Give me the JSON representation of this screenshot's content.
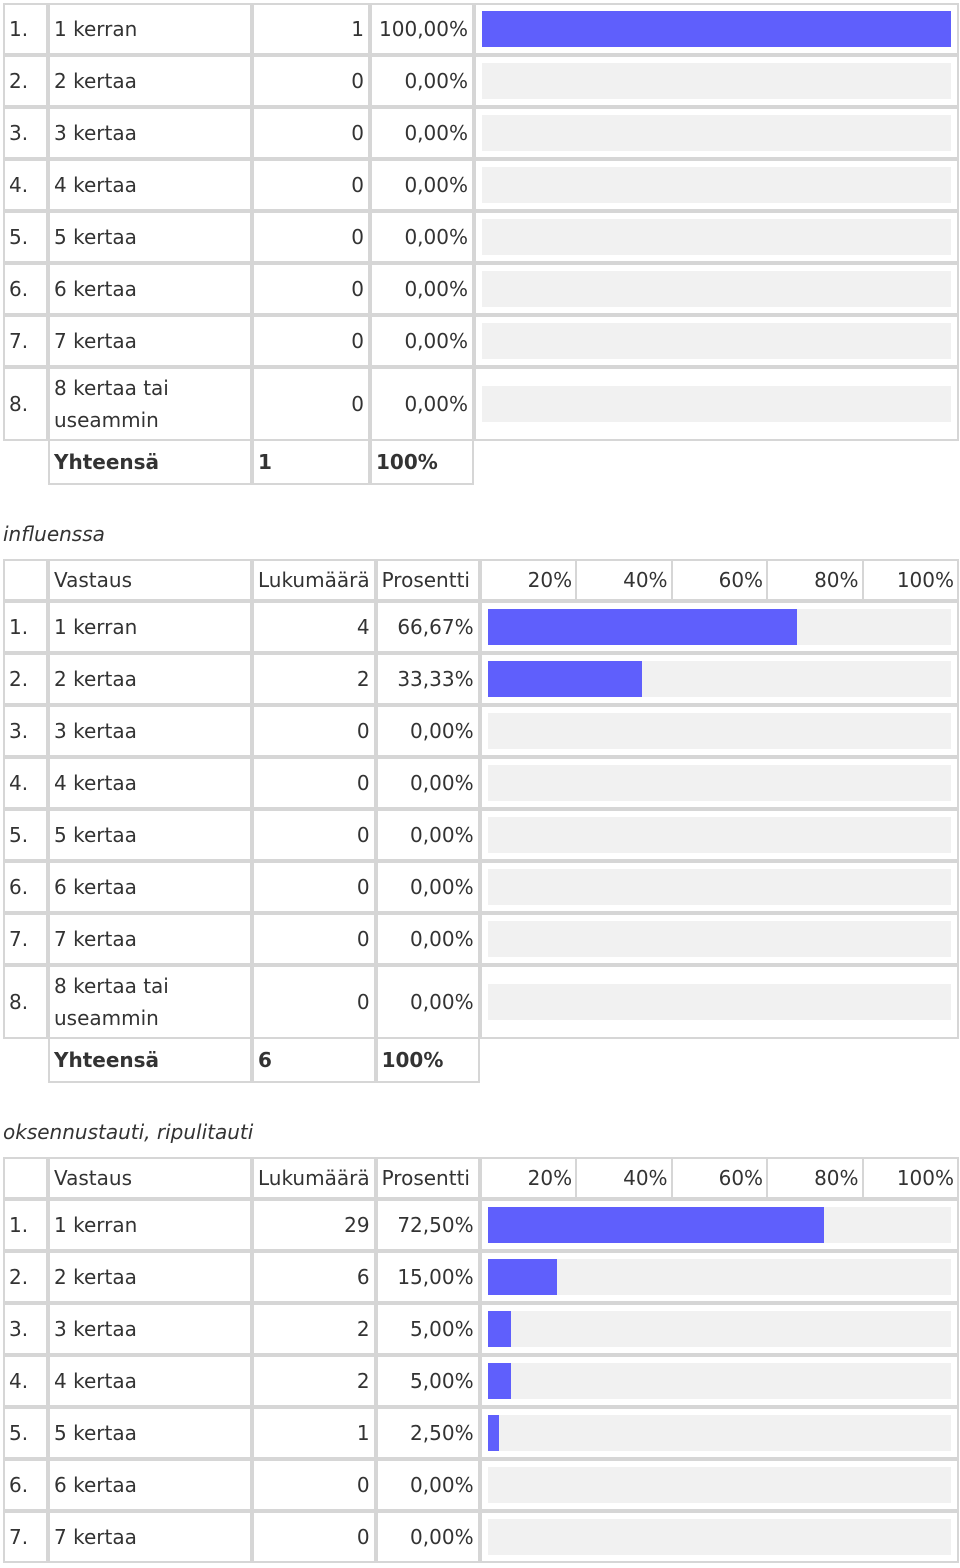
{
  "columns": {
    "answer": "Vastaus",
    "count": "Lukumäärä",
    "percent": "Prosentti",
    "scale": [
      "20%",
      "40%",
      "60%",
      "80%",
      "100%"
    ]
  },
  "sections": [
    {
      "title": "",
      "rows": [
        {
          "num": "1.",
          "label": "1 kerran",
          "count": "1",
          "pct": "100,00%",
          "value": 100.0
        },
        {
          "num": "2.",
          "label": "2 kertaa",
          "count": "0",
          "pct": "0,00%",
          "value": 0
        },
        {
          "num": "3.",
          "label": "3 kertaa",
          "count": "0",
          "pct": "0,00%",
          "value": 0
        },
        {
          "num": "4.",
          "label": "4 kertaa",
          "count": "0",
          "pct": "0,00%",
          "value": 0
        },
        {
          "num": "5.",
          "label": "5 kertaa",
          "count": "0",
          "pct": "0,00%",
          "value": 0
        },
        {
          "num": "6.",
          "label": "6 kertaa",
          "count": "0",
          "pct": "0,00%",
          "value": 0
        },
        {
          "num": "7.",
          "label": "7 kertaa",
          "count": "0",
          "pct": "0,00%",
          "value": 0
        },
        {
          "num": "8.",
          "label": "8 kertaa tai useammin",
          "count": "0",
          "pct": "0,00%",
          "value": 0
        }
      ],
      "total": {
        "label": "Yhteensä",
        "count": "1",
        "pct": "100%"
      }
    },
    {
      "title": "influenssa",
      "rows": [
        {
          "num": "1.",
          "label": "1 kerran",
          "count": "4",
          "pct": "66,67%",
          "value": 66.67
        },
        {
          "num": "2.",
          "label": "2 kertaa",
          "count": "2",
          "pct": "33,33%",
          "value": 33.33
        },
        {
          "num": "3.",
          "label": "3 kertaa",
          "count": "0",
          "pct": "0,00%",
          "value": 0
        },
        {
          "num": "4.",
          "label": "4 kertaa",
          "count": "0",
          "pct": "0,00%",
          "value": 0
        },
        {
          "num": "5.",
          "label": "5 kertaa",
          "count": "0",
          "pct": "0,00%",
          "value": 0
        },
        {
          "num": "6.",
          "label": "6 kertaa",
          "count": "0",
          "pct": "0,00%",
          "value": 0
        },
        {
          "num": "7.",
          "label": "7 kertaa",
          "count": "0",
          "pct": "0,00%",
          "value": 0
        },
        {
          "num": "8.",
          "label": "8 kertaa tai useammin",
          "count": "0",
          "pct": "0,00%",
          "value": 0
        }
      ],
      "total": {
        "label": "Yhteensä",
        "count": "6",
        "pct": "100%"
      }
    },
    {
      "title": "oksennustauti, ripulitauti",
      "rows": [
        {
          "num": "1.",
          "label": "1 kerran",
          "count": "29",
          "pct": "72,50%",
          "value": 72.5
        },
        {
          "num": "2.",
          "label": "2 kertaa",
          "count": "6",
          "pct": "15,00%",
          "value": 15.0
        },
        {
          "num": "3.",
          "label": "3 kertaa",
          "count": "2",
          "pct": "5,00%",
          "value": 5.0
        },
        {
          "num": "4.",
          "label": "4 kertaa",
          "count": "2",
          "pct": "5,00%",
          "value": 5.0
        },
        {
          "num": "5.",
          "label": "5 kertaa",
          "count": "1",
          "pct": "2,50%",
          "value": 2.5
        },
        {
          "num": "6.",
          "label": "6 kertaa",
          "count": "0",
          "pct": "0,00%",
          "value": 0
        },
        {
          "num": "7.",
          "label": "7 kertaa",
          "count": "0",
          "pct": "0,00%",
          "value": 0
        }
      ]
    }
  ],
  "colors": {
    "bar": "#5f5ffc",
    "track": "#f1f1f1",
    "border": "#d6d6d6"
  }
}
